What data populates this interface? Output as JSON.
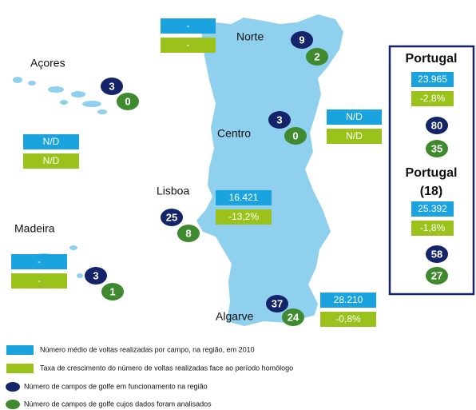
{
  "regions": [
    {
      "name": "Norte",
      "rounds": "-",
      "growth": "-",
      "courses": 9,
      "analyzed": 2
    },
    {
      "name": "Açores",
      "rounds": "N/D",
      "growth": "N/D",
      "courses": 3,
      "analyzed": 0
    },
    {
      "name": "Centro",
      "rounds": "N/D",
      "growth": "N/D",
      "courses": 3,
      "analyzed": 0
    },
    {
      "name": "Lisboa",
      "rounds": "16.421",
      "growth": "-13,2%",
      "courses": 25,
      "analyzed": 8
    },
    {
      "name": "Madeira",
      "rounds": "-",
      "growth": "-",
      "courses": 3,
      "analyzed": 1
    },
    {
      "name": "Algarve",
      "rounds": "28.210",
      "growth": "-0,8%",
      "courses": 37,
      "analyzed": 24
    }
  ],
  "portugal": {
    "title": "Portugal",
    "rounds": "23.965",
    "growth": "-2,8%",
    "courses": 80,
    "analyzed": 35
  },
  "portugal18": {
    "title": "Portugal",
    "subtitle": "(18)",
    "rounds": "25.392",
    "growth": "-1,8%",
    "courses": 58,
    "analyzed": 27
  },
  "legend": [
    "Número médio de voltas realizadas por campo, na região, em 2010",
    "Taxa de crescimento do número de voltas realizadas face ao período homólogo",
    "Número de campos de golfe em funcionamento na região",
    "Número de campos de golfe cujos dados foram analisados"
  ]
}
